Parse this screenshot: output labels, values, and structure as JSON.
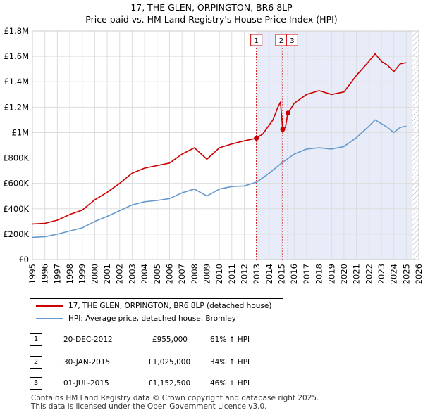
{
  "chart_data": {
    "type": "line",
    "title": "17, THE GLEN, ORPINGTON, BR6 8LP",
    "subtitle": "Price paid vs. HM Land Registry's House Price Index (HPI)",
    "x_ticks": [
      "1995",
      "1996",
      "1997",
      "1998",
      "1999",
      "2000",
      "2001",
      "2002",
      "2003",
      "2004",
      "2005",
      "2006",
      "2007",
      "2008",
      "2009",
      "2010",
      "2011",
      "2012",
      "2013",
      "2014",
      "2015",
      "2016",
      "2017",
      "2018",
      "2019",
      "2020",
      "2021",
      "2022",
      "2023",
      "2024",
      "2025",
      "2026"
    ],
    "y_ticks": [
      "£0",
      "£200K",
      "£400K",
      "£600K",
      "£800K",
      "£1M",
      "£1.2M",
      "£1.4M",
      "£1.6M",
      "£1.8M"
    ],
    "xlim": [
      1995,
      2026
    ],
    "ylim": [
      0,
      1800000
    ],
    "grid": true,
    "highlight_region": [
      2012.97,
      2025.5
    ],
    "series": [
      {
        "name": "17, THE GLEN, ORPINGTON, BR6 8LP (detached house)",
        "color": "#cc0000",
        "points": [
          [
            1995,
            280000
          ],
          [
            1996,
            285000
          ],
          [
            1997,
            310000
          ],
          [
            1998,
            355000
          ],
          [
            1999,
            390000
          ],
          [
            2000,
            470000
          ],
          [
            2001,
            530000
          ],
          [
            2002,
            600000
          ],
          [
            2003,
            680000
          ],
          [
            2004,
            720000
          ],
          [
            2005,
            740000
          ],
          [
            2006,
            760000
          ],
          [
            2007,
            830000
          ],
          [
            2008,
            880000
          ],
          [
            2009,
            790000
          ],
          [
            2010,
            880000
          ],
          [
            2011,
            910000
          ],
          [
            2012,
            935000
          ],
          [
            2012.97,
            955000
          ],
          [
            2013.5,
            990000
          ],
          [
            2014.3,
            1100000
          ],
          [
            2014.7,
            1200000
          ],
          [
            2014.9,
            1240000
          ],
          [
            2015.08,
            1025000
          ],
          [
            2015.3,
            1040000
          ],
          [
            2015.45,
            1130000
          ],
          [
            2015.5,
            1152500
          ],
          [
            2016,
            1230000
          ],
          [
            2017,
            1300000
          ],
          [
            2018,
            1330000
          ],
          [
            2019,
            1300000
          ],
          [
            2020,
            1320000
          ],
          [
            2021,
            1450000
          ],
          [
            2022,
            1560000
          ],
          [
            2022.5,
            1620000
          ],
          [
            2023,
            1560000
          ],
          [
            2023.5,
            1530000
          ],
          [
            2024,
            1480000
          ],
          [
            2024.5,
            1540000
          ],
          [
            2025,
            1550000
          ]
        ]
      },
      {
        "name": "HPI: Average price, detached house, Bromley",
        "color": "#6699cc",
        "points": [
          [
            1995,
            175000
          ],
          [
            1996,
            180000
          ],
          [
            1997,
            200000
          ],
          [
            1998,
            225000
          ],
          [
            1999,
            250000
          ],
          [
            2000,
            300000
          ],
          [
            2001,
            340000
          ],
          [
            2002,
            385000
          ],
          [
            2003,
            430000
          ],
          [
            2004,
            455000
          ],
          [
            2005,
            465000
          ],
          [
            2006,
            480000
          ],
          [
            2007,
            525000
          ],
          [
            2008,
            555000
          ],
          [
            2009,
            500000
          ],
          [
            2010,
            555000
          ],
          [
            2011,
            575000
          ],
          [
            2012,
            580000
          ],
          [
            2013,
            610000
          ],
          [
            2014,
            680000
          ],
          [
            2015,
            760000
          ],
          [
            2016,
            830000
          ],
          [
            2017,
            870000
          ],
          [
            2018,
            880000
          ],
          [
            2019,
            870000
          ],
          [
            2020,
            890000
          ],
          [
            2021,
            960000
          ],
          [
            2022,
            1050000
          ],
          [
            2022.5,
            1100000
          ],
          [
            2023,
            1070000
          ],
          [
            2023.5,
            1040000
          ],
          [
            2024,
            1000000
          ],
          [
            2024.5,
            1040000
          ],
          [
            2025,
            1050000
          ]
        ]
      }
    ],
    "markers": [
      {
        "label": "1",
        "x": 2012.97,
        "y": 955000
      },
      {
        "label": "2",
        "x": 2015.08,
        "y": 1025000
      },
      {
        "label": "3",
        "x": 2015.5,
        "y": 1152500
      }
    ]
  },
  "legend": {
    "items": [
      {
        "label": "17, THE GLEN, ORPINGTON, BR6 8LP (detached house)",
        "color": "#cc0000"
      },
      {
        "label": "HPI: Average price, detached house, Bromley",
        "color": "#6699cc"
      }
    ]
  },
  "transactions": [
    {
      "num": "1",
      "date": "20-DEC-2012",
      "price": "£955,000",
      "hpi": "61% ↑ HPI"
    },
    {
      "num": "2",
      "date": "30-JAN-2015",
      "price": "£1,025,000",
      "hpi": "34% ↑ HPI"
    },
    {
      "num": "3",
      "date": "01-JUL-2015",
      "price": "£1,152,500",
      "hpi": "46% ↑ HPI"
    }
  ],
  "footer": {
    "line1": "Contains HM Land Registry data © Crown copyright and database right 2025.",
    "line2": "This data is licensed under the Open Government Licence v3.0."
  }
}
